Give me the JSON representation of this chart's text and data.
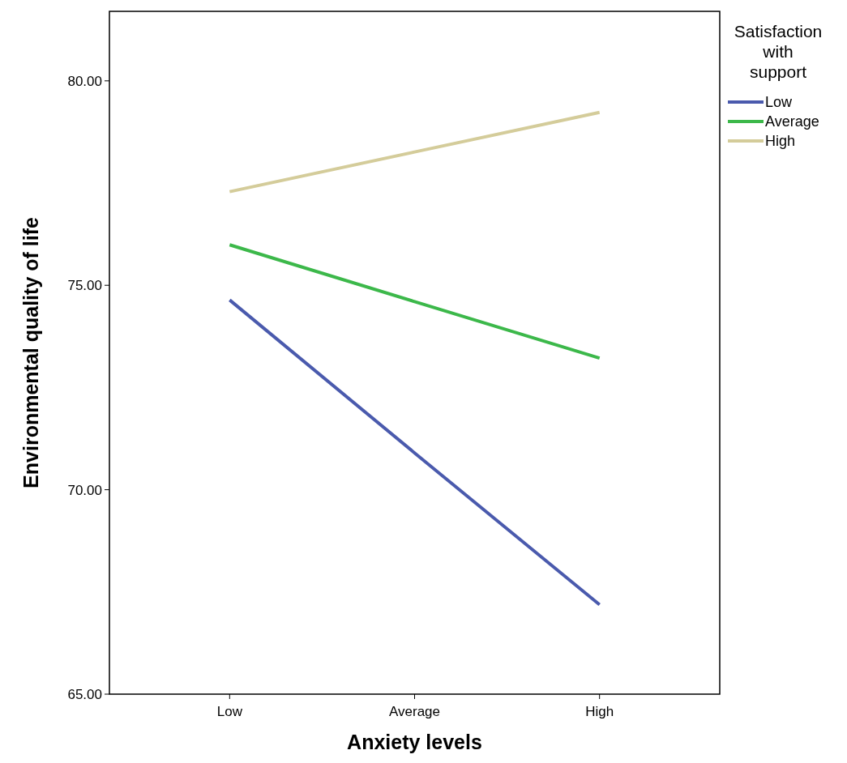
{
  "chart_data": {
    "type": "line",
    "xlabel": "Anxiety levels",
    "ylabel": "Environmental quality of life",
    "legend_title": "Satisfaction with support",
    "legend": "top right",
    "grid": false,
    "marker": "none",
    "line_style": "solid",
    "categories": [
      "Low",
      "Average",
      "High"
    ],
    "ylim": [
      65,
      81.7
    ],
    "yticks": [
      {
        "value": 65,
        "label": "65.00"
      },
      {
        "value": 70,
        "label": "70.00"
      },
      {
        "value": 75,
        "label": "75.00"
      },
      {
        "value": 80,
        "label": "80.00"
      }
    ],
    "series": [
      {
        "name": "Low",
        "color": "#4a5aad",
        "values": [
          74.64,
          70.9,
          67.19
        ]
      },
      {
        "name": "Average",
        "color": "#3cb84a",
        "values": [
          75.99,
          74.6,
          73.22
        ]
      },
      {
        "name": "High",
        "color": "#d4cc9a",
        "values": [
          77.29,
          78.26,
          79.23
        ]
      }
    ]
  }
}
